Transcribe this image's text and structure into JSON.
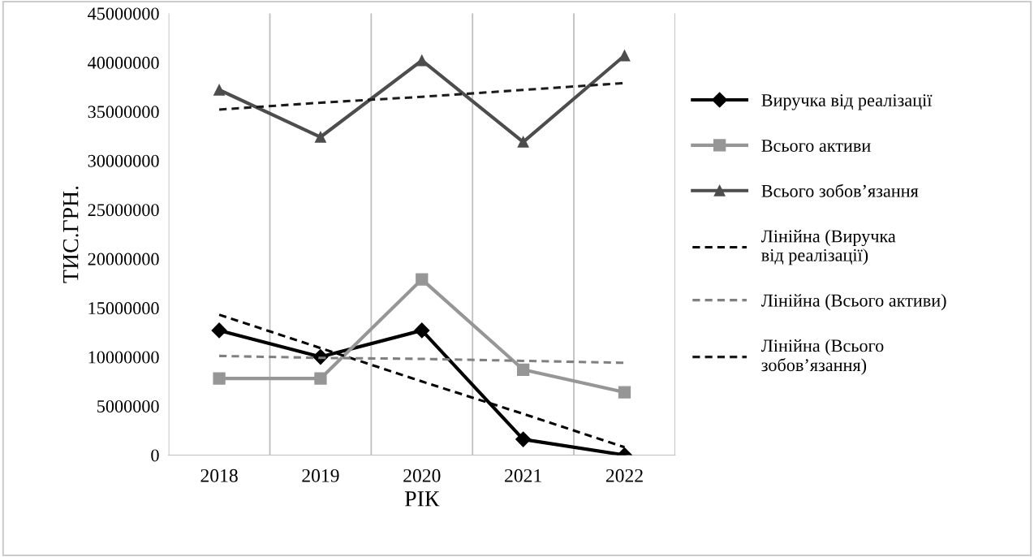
{
  "chart_data": {
    "type": "line",
    "xlabel": "РІК",
    "ylabel": "ТИС.ГРН.",
    "categories": [
      "2018",
      "2019",
      "2020",
      "2021",
      "2022"
    ],
    "ylim": [
      0,
      45000000
    ],
    "yticks": [
      0,
      5000000,
      10000000,
      15000000,
      20000000,
      25000000,
      30000000,
      35000000,
      40000000,
      45000000
    ],
    "grid": "x",
    "legend": "right",
    "series": [
      {
        "name": "Виручка від реалізації",
        "color": "#000000",
        "marker": "diamond",
        "line_style": "solid",
        "values": [
          12700000,
          10000000,
          12700000,
          1600000,
          0
        ]
      },
      {
        "name": "Всього активи",
        "color": "#969696",
        "marker": "square",
        "line_style": "solid",
        "values": [
          7800000,
          7800000,
          17900000,
          8700000,
          6400000
        ]
      },
      {
        "name": "Всього зобов’язання",
        "color": "#4d4d4d",
        "marker": "triangle",
        "line_style": "solid",
        "values": [
          37200000,
          32400000,
          40200000,
          31900000,
          40700000
        ]
      },
      {
        "name": "Лінійна (Виручка від реалізації)",
        "color": "#000000",
        "marker": "none",
        "line_style": "dashed",
        "values": [
          14300000,
          10900000,
          7500000,
          4200000,
          800000
        ]
      },
      {
        "name": "Лінійна (Всього активи)",
        "color": "#808080",
        "marker": "none",
        "line_style": "dashed",
        "values": [
          10100000,
          9900000,
          9800000,
          9600000,
          9400000
        ]
      },
      {
        "name": "Лінійна (Всього зобов’язання)",
        "color": "#1a1a1a",
        "marker": "none",
        "line_style": "dashed",
        "values": [
          35200000,
          35900000,
          36500000,
          37200000,
          37900000
        ]
      }
    ]
  }
}
